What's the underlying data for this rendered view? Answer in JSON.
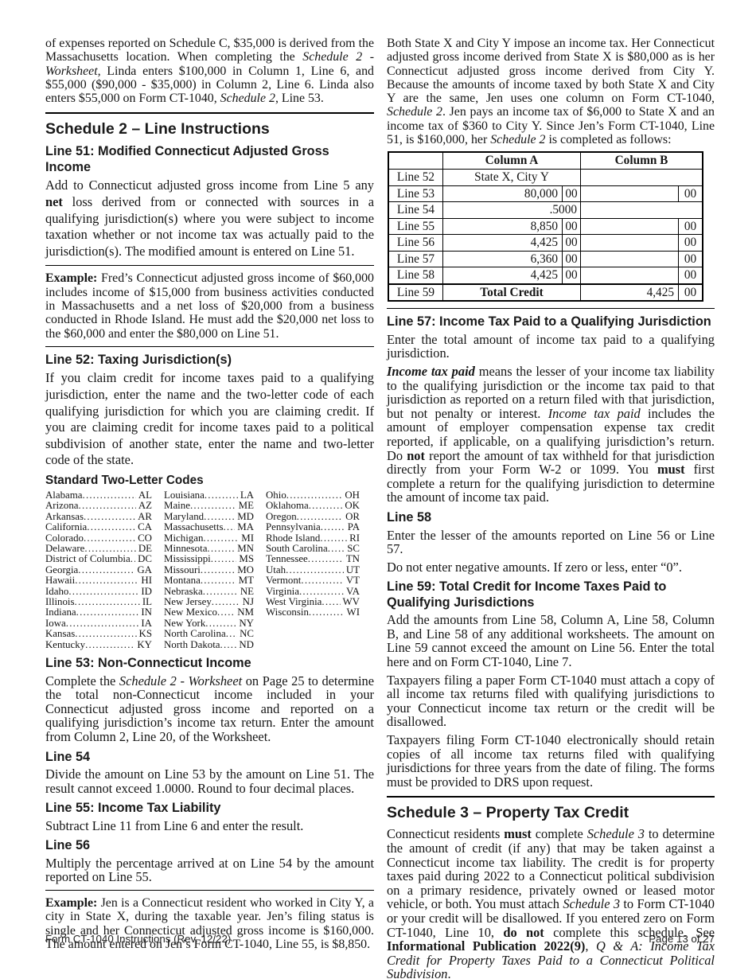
{
  "left": {
    "intro": [
      {
        "t": "of expenses reported on Schedule C, $35,000 is derived from the Massachusetts location. When completing the ",
        "s": "n"
      },
      {
        "t": "Schedule 2 - Worksheet,",
        "s": "i"
      },
      {
        "t": " Linda enters $100,000 in Column 1, Line 6, and $55,000 ($90,000 - $35,000) in Column 2, Line 6. Linda also enters $55,000 on Form CT-1040, ",
        "s": "n"
      },
      {
        "t": "Schedule 2",
        "s": "i"
      },
      {
        "t": ", Line 53.",
        "s": "n"
      }
    ],
    "schedule2_heading": "Schedule 2 – Line Instructions",
    "line51": {
      "heading": "Line 51: Modified Connecticut Adjusted Gross Income",
      "body": [
        {
          "t": "Add to Connecticut adjusted gross income from Line 5 any ",
          "s": "n"
        },
        {
          "t": "net",
          "s": "b"
        },
        {
          "t": " loss derived from or connected with sources in a qualifying jurisdiction(s) where you were subject to income taxation whether or not income tax was actually paid to the jurisdiction(s). The modified amount is entered on Line 51.",
          "s": "n"
        }
      ]
    },
    "example_fred": [
      {
        "t": "Example: ",
        "s": "b"
      },
      {
        "t": "Fred’s Connecticut adjusted gross income of $60,000 includes income of $15,000 from business activities conducted in Massachusetts and a net loss of $20,000 from a business conducted in Rhode Island. He must add the $20,000 net loss to the $60,000 and enter the $80,000 on Line 51.",
        "s": "n"
      }
    ],
    "line52": {
      "heading": "Line 52: Taxing Jurisdiction(s)",
      "body": [
        {
          "t": "If you claim credit for income taxes paid to a qualifying jurisdiction, enter the name and the two-letter code of each qualifying jurisdiction for which you are claiming credit. If you are claiming credit for income taxes paid to a political subdivision of another state, enter the name and two-letter code of the state.",
          "s": "n"
        }
      ]
    },
    "codes": {
      "heading": "Standard Two-Letter Codes",
      "col1": [
        {
          "name": "Alabama",
          "code": "AL"
        },
        {
          "name": "Arizona",
          "code": "AZ"
        },
        {
          "name": "Arkansas",
          "code": "AR"
        },
        {
          "name": "California",
          "code": "CA"
        },
        {
          "name": "Colorado",
          "code": "CO"
        },
        {
          "name": "Delaware",
          "code": "DE"
        },
        {
          "name": "District of Columbia",
          "code": "DC"
        },
        {
          "name": "Georgia",
          "code": "GA"
        },
        {
          "name": "Hawaii",
          "code": "HI"
        },
        {
          "name": "Idaho",
          "code": "ID"
        },
        {
          "name": "Illinois",
          "code": "IL"
        },
        {
          "name": "Indiana",
          "code": "IN"
        },
        {
          "name": "Iowa",
          "code": "IA"
        },
        {
          "name": "Kansas",
          "code": "KS"
        },
        {
          "name": "Kentucky",
          "code": "KY"
        }
      ],
      "col2": [
        {
          "name": "Louisiana",
          "code": "LA"
        },
        {
          "name": "Maine",
          "code": "ME"
        },
        {
          "name": "Maryland",
          "code": "MD"
        },
        {
          "name": "Massachusetts",
          "code": "MA"
        },
        {
          "name": "Michigan",
          "code": "MI"
        },
        {
          "name": "Minnesota",
          "code": "MN"
        },
        {
          "name": "Mississippi",
          "code": "MS"
        },
        {
          "name": "Missouri",
          "code": "MO"
        },
        {
          "name": "Montana",
          "code": "MT"
        },
        {
          "name": "Nebraska",
          "code": "NE"
        },
        {
          "name": "New Jersey",
          "code": "NJ"
        },
        {
          "name": "New Mexico",
          "code": "NM"
        },
        {
          "name": "New York",
          "code": "NY"
        },
        {
          "name": "North Carolina",
          "code": "NC"
        },
        {
          "name": "North Dakota",
          "code": "ND"
        }
      ],
      "col3": [
        {
          "name": "Ohio",
          "code": "OH"
        },
        {
          "name": "Oklahoma",
          "code": "OK"
        },
        {
          "name": "Oregon",
          "code": "OR"
        },
        {
          "name": "Pennsylvania",
          "code": "PA"
        },
        {
          "name": "Rhode Island",
          "code": "RI"
        },
        {
          "name": "South Carolina",
          "code": "SC"
        },
        {
          "name": "Tennessee",
          "code": "TN"
        },
        {
          "name": "Utah",
          "code": "UT"
        },
        {
          "name": "Vermont",
          "code": "VT"
        },
        {
          "name": "Virginia",
          "code": "VA"
        },
        {
          "name": "West Virginia",
          "code": "WV"
        },
        {
          "name": "Wisconsin",
          "code": "WI"
        }
      ]
    },
    "line53": {
      "heading": "Line 53: Non-Connecticut Income",
      "body": [
        {
          "t": "Complete the ",
          "s": "n"
        },
        {
          "t": "Schedule 2 - Worksheet",
          "s": "i"
        },
        {
          "t": " on Page 25 to determine the total non-Connecticut income included in your Connecticut adjusted gross income and reported on a qualifying jurisdiction’s income tax return. Enter the amount from Column 2, Line 20, of the Worksheet.",
          "s": "n"
        }
      ]
    },
    "line54": {
      "heading": "Line 54",
      "body": [
        {
          "t": "Divide the amount on Line 53 by the amount on Line 51. The result cannot exceed 1.0000. Round to four decimal places.",
          "s": "n"
        }
      ]
    },
    "line55": {
      "heading": "Line 55: Income Tax Liability",
      "body": [
        {
          "t": "Subtract Line 11 from Line 6 and enter the result.",
          "s": "n"
        }
      ]
    },
    "line56": {
      "heading": "Line 56",
      "body": [
        {
          "t": "Multiply the percentage arrived at on Line 54 by the amount reported on Line 55.",
          "s": "n"
        }
      ]
    },
    "example_jen": [
      {
        "t": "Example: ",
        "s": "b"
      },
      {
        "t": "Jen is a Connecticut resident who worked in City Y, a city in State X, during the taxable year. Jen’s filing status is single and her Connecticut adjusted gross income is $160,000. The amount entered on Jen’s Form CT-1040, Line 55, is $8,850.",
        "s": "n"
      }
    ]
  },
  "right": {
    "jen_para": [
      {
        "t": "Both State X and City Y impose an income tax. Her Connecticut adjusted gross income derived from State X is $80,000 as is her Connecticut adjusted gross income derived from City Y. Because the amounts of income taxed by both State X and City Y are the same, Jen uses one column on Form CT-1040, ",
        "s": "n"
      },
      {
        "t": "Schedule 2",
        "s": "i"
      },
      {
        "t": ". Jen pays an income tax of $6,000 to State X and an income tax of $360 to City Y. Since Jen’s Form CT-1040, Line 51, is $160,000, her ",
        "s": "n"
      },
      {
        "t": "Schedule 2",
        "s": "i"
      },
      {
        "t": " is completed as follows:",
        "s": "n"
      }
    ],
    "table": {
      "col_a_header": "Column A",
      "col_b_header": "Column B",
      "rows": {
        "r52": {
          "label": "Line 52",
          "a": "State X, City Y",
          "b": ""
        },
        "r53": {
          "label": "Line 53",
          "a": "80,000",
          "a_cents": "00",
          "b": "",
          "b_cents": "00"
        },
        "r54": {
          "label": "Line 54",
          "a": ".5000",
          "b": ""
        },
        "r55": {
          "label": "Line 55",
          "a": "8,850",
          "a_cents": "00",
          "b": "",
          "b_cents": "00"
        },
        "r56": {
          "label": "Line 56",
          "a": "4,425",
          "a_cents": "00",
          "b": "",
          "b_cents": "00"
        },
        "r57": {
          "label": "Line 57",
          "a": "6,360",
          "a_cents": "00",
          "b": "",
          "b_cents": "00"
        },
        "r58": {
          "label": "Line 58",
          "a": "4,425",
          "a_cents": "00",
          "b": "",
          "b_cents": "00"
        },
        "r59": {
          "label": "Line 59",
          "a": "Total Credit",
          "b": "4,425",
          "b_cents": "00"
        }
      }
    },
    "line57": {
      "heading": "Line 57: Income Tax Paid to a Qualifying Jurisdiction",
      "body1": [
        {
          "t": "Enter the total amount of income tax paid to a qualifying jurisdiction.",
          "s": "n"
        }
      ],
      "body2": [
        {
          "t": "Income tax paid",
          "s": "bi"
        },
        {
          "t": " means the lesser of your income tax liability to the qualifying jurisdiction or the income tax paid to that jurisdiction as reported on a return filed with that jurisdiction, but not penalty or interest. ",
          "s": "n"
        },
        {
          "t": "Income tax paid",
          "s": "i"
        },
        {
          "t": " includes the amount of employer compensation expense tax credit reported, if applicable, on a qualifying jurisdiction’s return. Do ",
          "s": "n"
        },
        {
          "t": "not",
          "s": "b"
        },
        {
          "t": " report the amount of tax withheld for that jurisdiction directly from your Form W-2 or 1099. You ",
          "s": "n"
        },
        {
          "t": "must",
          "s": "b"
        },
        {
          "t": " first complete a return for the qualifying jurisdiction to determine the amount of income tax paid.",
          "s": "n"
        }
      ]
    },
    "line58": {
      "heading": "Line 58",
      "body1": [
        {
          "t": "Enter the lesser of the amounts reported on Line 56 or Line 57.",
          "s": "n"
        }
      ],
      "body2": [
        {
          "t": "Do not enter negative amounts. If zero or less, enter “0”.",
          "s": "n"
        }
      ]
    },
    "line59": {
      "heading": "Line 59: Total Credit for Income Taxes Paid to Qualifying Jurisdictions",
      "body1": [
        {
          "t": "Add the amounts from Line 58, Column A, Line 58, Column B, and Line 58 of any additional worksheets. The amount on Line 59 cannot exceed the amount on Line 56. Enter the total here and on Form CT-1040, Line 7.",
          "s": "n"
        }
      ],
      "body2": [
        {
          "t": "Taxpayers filing a paper Form CT-1040 must attach a copy of all income tax returns filed with qualifying jurisdictions to your Connecticut income tax return or the credit will be disallowed.",
          "s": "n"
        }
      ],
      "body3": [
        {
          "t": "Taxpayers filing Form CT-1040 electronically should retain copies of all income tax returns filed with qualifying jurisdictions for three years from the date of filing. The forms must be provided to DRS upon request.",
          "s": "n"
        }
      ]
    },
    "schedule3": {
      "heading": "Schedule 3 – Property Tax Credit",
      "body": [
        {
          "t": "Connecticut residents ",
          "s": "n"
        },
        {
          "t": "must",
          "s": "b"
        },
        {
          "t": " complete ",
          "s": "n"
        },
        {
          "t": "Schedule 3",
          "s": "i"
        },
        {
          "t": " to determine the amount of credit (if any) that may be taken against a Connecticut income tax liability. The credit is for property taxes paid during 2022 to a Connecticut political subdivision on a primary residence, privately owned or leased motor vehicle, or both. You must attach ",
          "s": "n"
        },
        {
          "t": "Schedule 3",
          "s": "i"
        },
        {
          "t": " to Form CT-1040 or your credit will be disallowed. If you entered zero on Form CT-1040, Line 10, ",
          "s": "n"
        },
        {
          "t": "do not",
          "s": "b"
        },
        {
          "t": " complete this schedule. See ",
          "s": "n"
        },
        {
          "t": "Informational Publication 2022(9)",
          "s": "b"
        },
        {
          "t": ", ",
          "s": "n"
        },
        {
          "t": "Q & A: Income Tax Credit for Property Taxes Paid to a Connecticut Political Subdivision",
          "s": "i"
        },
        {
          "t": ".",
          "s": "n"
        }
      ]
    }
  },
  "footer": {
    "left": "Form CT-1040 Instructions (Rev. 12/22)",
    "right": "Page 13 of 27"
  }
}
